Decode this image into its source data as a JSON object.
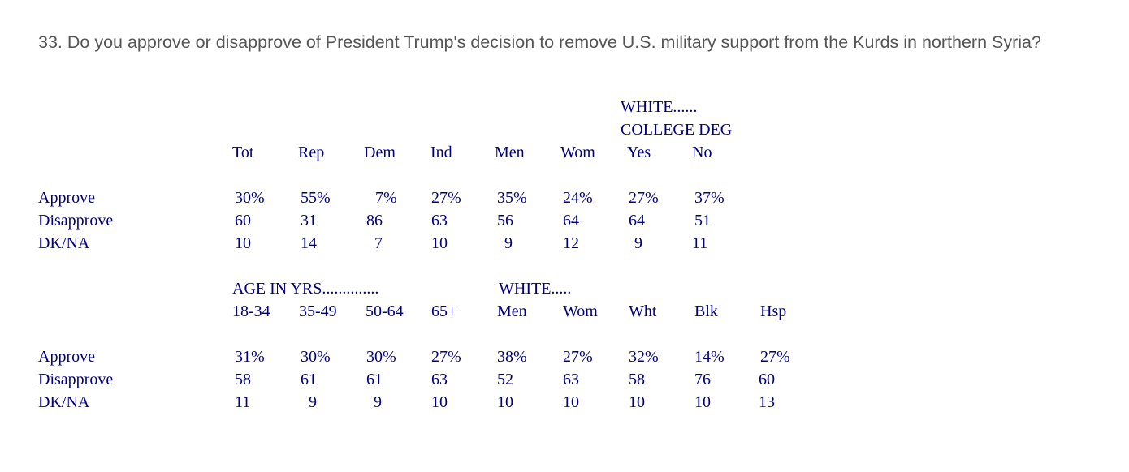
{
  "question": "33. Do you approve or disapprove of President Trump's decision to remove U.S. military support from the Kurds in northern Syria?",
  "table1": {
    "group_header_line1": "WHITE......",
    "group_header_line2": "COLLEGE DEG",
    "columns": [
      "Tot",
      "Rep",
      "Dem",
      "Ind",
      "Men",
      "Wom",
      "Yes",
      "No"
    ],
    "rows": [
      {
        "label": "Approve",
        "values": [
          "30%",
          "55%",
          "7%",
          "27%",
          "35%",
          "24%",
          "27%",
          "37%"
        ]
      },
      {
        "label": "Disapprove",
        "values": [
          "60",
          "31",
          "86",
          "63",
          "56",
          "64",
          "64",
          "51"
        ]
      },
      {
        "label": "DK/NA",
        "values": [
          "10",
          "14",
          "7",
          "10",
          "9",
          "12",
          "9",
          "11"
        ]
      }
    ]
  },
  "table2": {
    "group_header_age": "AGE IN YRS..............",
    "group_header_white": "WHITE.....",
    "columns": [
      "18-34",
      "35-49",
      "50-64",
      "65+",
      "Men",
      "Wom",
      "Wht",
      "Blk",
      "Hsp"
    ],
    "rows": [
      {
        "label": "Approve",
        "values": [
          "31%",
          "30%",
          "30%",
          "27%",
          "38%",
          "27%",
          "32%",
          "14%",
          "27%"
        ]
      },
      {
        "label": "Disapprove",
        "values": [
          "58",
          "61",
          "61",
          "63",
          "52",
          "63",
          "58",
          "76",
          "60"
        ]
      },
      {
        "label": "DK/NA",
        "values": [
          "11",
          "9",
          "9",
          "10",
          "10",
          "10",
          "10",
          "10",
          "13"
        ]
      }
    ]
  }
}
